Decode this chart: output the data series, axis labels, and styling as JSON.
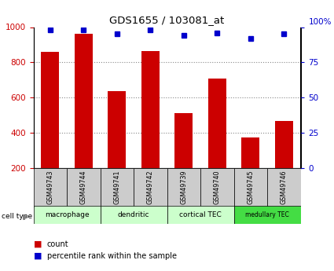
{
  "title": "GDS1655 / 103081_at",
  "samples": [
    "GSM49743",
    "GSM49744",
    "GSM49741",
    "GSM49742",
    "GSM49739",
    "GSM49740",
    "GSM49745",
    "GSM49746"
  ],
  "counts": [
    860,
    960,
    635,
    865,
    510,
    710,
    375,
    465
  ],
  "percentiles": [
    98,
    98,
    95,
    98,
    94,
    96,
    92,
    95
  ],
  "cell_types": [
    {
      "label": "macrophage",
      "start": 0,
      "end": 2,
      "color": "#ccffcc"
    },
    {
      "label": "dendritic",
      "start": 2,
      "end": 4,
      "color": "#ccffcc"
    },
    {
      "label": "cortical TEC",
      "start": 4,
      "end": 6,
      "color": "#ccffcc"
    },
    {
      "label": "medullary TEC",
      "start": 6,
      "end": 8,
      "color": "#44dd44"
    }
  ],
  "ylim_left": [
    200,
    1000
  ],
  "ylim_right": [
    0,
    100
  ],
  "yticks_left": [
    200,
    400,
    600,
    800,
    1000
  ],
  "yticks_right": [
    0,
    25,
    50,
    75,
    100
  ],
  "bar_color": "#cc0000",
  "dot_color": "#0000cc",
  "bar_width": 0.55,
  "grid_color": "#888888",
  "left_tick_color": "#cc0000",
  "right_tick_color": "#0000cc",
  "sample_box_color": "#cccccc",
  "cell_type_color_light": "#ccffcc",
  "cell_type_color_dark": "#44dd44"
}
